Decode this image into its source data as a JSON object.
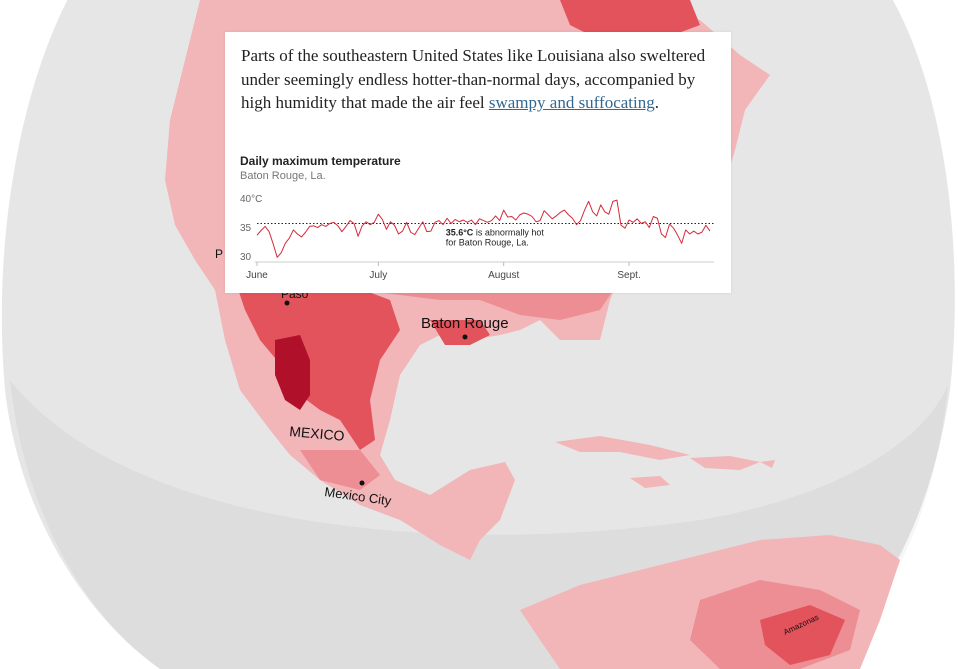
{
  "map": {
    "labels": {
      "mexico": "MEXICO",
      "mexico_city": "Mexico City",
      "baton_rouge": "Baton Rouge",
      "paso_fragment": "Paso",
      "p_fragment": "P",
      "amazonas": "Amazonas"
    },
    "colors": {
      "globe": "#e6e6e6",
      "land_low": "#f2b5b8",
      "land_mid": "#ec8e93",
      "land_high": "#e2535c",
      "land_max": "#b0102a",
      "extreme": "#8a0a1e"
    }
  },
  "card": {
    "text_before": "Parts of the southeastern United States like Louisiana also sweltered under seemingly endless hotter-than-normal days, accompanied by high humidity that made the air feel ",
    "link_text": "swampy and suffocating",
    "text_after": "."
  },
  "chart_data": {
    "type": "line",
    "title": "Daily maximum temperature",
    "subtitle": "Baton Rouge, La.",
    "y_tick_labels": [
      "40°C",
      "35",
      "30"
    ],
    "y_ticks": [
      40,
      35,
      30
    ],
    "ylim": [
      29,
      41
    ],
    "x_tick_labels": [
      "June",
      "July",
      "August",
      "Sept."
    ],
    "x_tick_days": [
      0,
      30,
      61,
      92
    ],
    "xlim": [
      0,
      113
    ],
    "threshold": {
      "value": 35.6,
      "label_bold": "35.6°C",
      "label_rest": " is abnormally hot",
      "label_line2": "for Baton Rouge, La."
    },
    "line_color": "#d42a3a",
    "series": [
      {
        "values": [
          33.6,
          34.4,
          35.1,
          34.2,
          32.1,
          29.8,
          30.6,
          32.2,
          33.1,
          34.5,
          33.8,
          33.3,
          34.1,
          35.1,
          35.2,
          34.9,
          35.4,
          35.1,
          35.6,
          35.8,
          35.2,
          34.2,
          35.1,
          36.1,
          35.6,
          33.4,
          35.2,
          35.9,
          35.4,
          35.8,
          37.2,
          36.3,
          34.6,
          35.9,
          35.3,
          33.8,
          34.3,
          35.8,
          34.1,
          33.7,
          34.8,
          35.9,
          34.2,
          34.3,
          35.8,
          36.1,
          35.4,
          36.5,
          35.6,
          36.3,
          35.9,
          36.2,
          35.8,
          36.2,
          35.4,
          36.4,
          36.1,
          35.8,
          36.1,
          36.9,
          36.1,
          37.9,
          36.7,
          36.8,
          36.2,
          37.1,
          37.4,
          37.2,
          36.8,
          35.9,
          36.1,
          37.8,
          37.1,
          36.4,
          36.9,
          37.5,
          37.9,
          37.1,
          36.5,
          35.4,
          36.1,
          37.9,
          39.4,
          37.6,
          36.9,
          38.8,
          37.6,
          37.2,
          39.4,
          39.6,
          35.3,
          34.8,
          36.2,
          35.8,
          36.4,
          35.6,
          35.9,
          34.9,
          36.8,
          36.5,
          33.8,
          33.2,
          35.5,
          34.8,
          33.6,
          32.2,
          34.5,
          33.8,
          34.3,
          33.8,
          34.1,
          35.3,
          34.3
        ]
      }
    ]
  }
}
